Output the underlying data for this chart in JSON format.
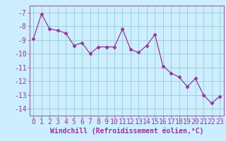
{
  "x": [
    0,
    1,
    2,
    3,
    4,
    5,
    6,
    7,
    8,
    9,
    10,
    11,
    12,
    13,
    14,
    15,
    16,
    17,
    18,
    19,
    20,
    21,
    22,
    23
  ],
  "y": [
    -8.9,
    -7.1,
    -8.2,
    -8.3,
    -8.5,
    -9.4,
    -9.2,
    -10.0,
    -9.5,
    -9.5,
    -9.5,
    -8.2,
    -9.7,
    -9.9,
    -9.4,
    -8.6,
    -10.9,
    -11.4,
    -11.7,
    -12.4,
    -11.8,
    -13.0,
    -13.6,
    -13.1
  ],
  "line_color": "#993399",
  "marker": "D",
  "marker_size": 2.5,
  "bg_color": "#cceeff",
  "grid_color": "#99cccc",
  "xlabel": "Windchill (Refroidissement éolien,°C)",
  "ylim": [
    -14.5,
    -6.5
  ],
  "xlim": [
    -0.5,
    23.5
  ],
  "yticks": [
    -14,
    -13,
    -12,
    -11,
    -10,
    -9,
    -8,
    -7
  ],
  "xticks": [
    0,
    1,
    2,
    3,
    4,
    5,
    6,
    7,
    8,
    9,
    10,
    11,
    12,
    13,
    14,
    15,
    16,
    17,
    18,
    19,
    20,
    21,
    22,
    23
  ],
  "tick_color": "#993399",
  "label_color": "#993399",
  "xlabel_fontsize": 7,
  "tick_fontsize": 7,
  "spine_color": "#996699"
}
